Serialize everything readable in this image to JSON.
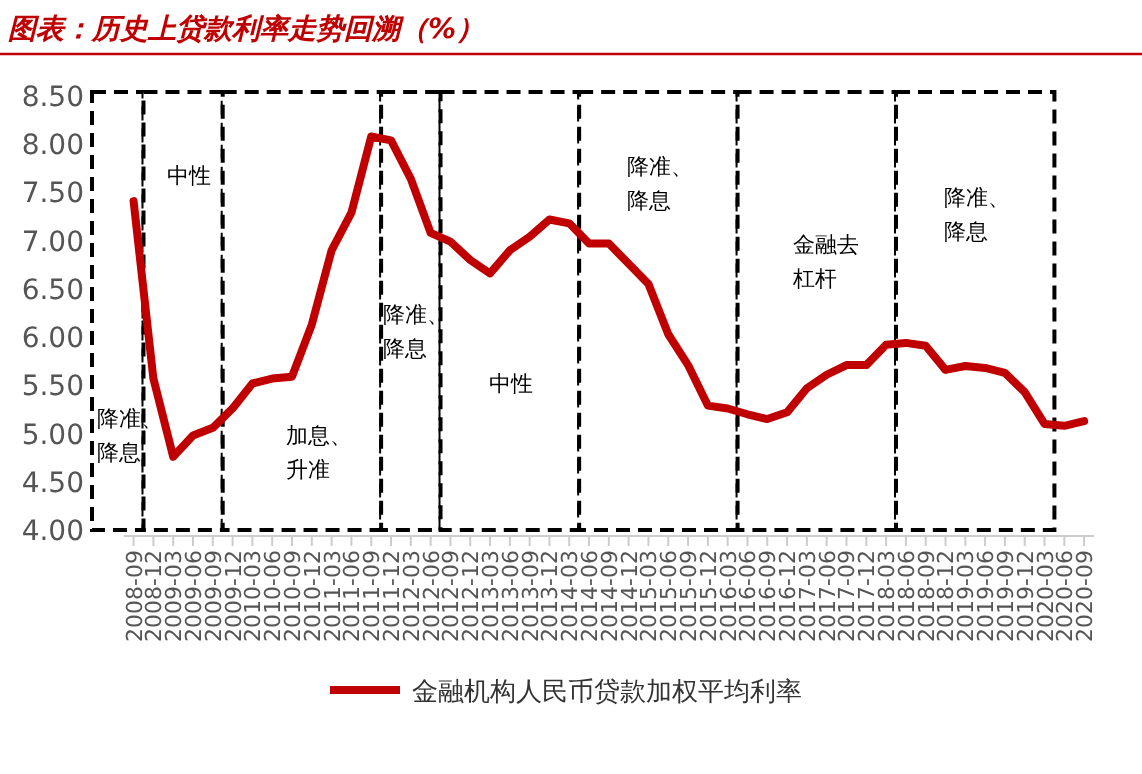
{
  "chart_data": {
    "type": "line",
    "title": "图表：历史上贷款利率走势回溯（%）",
    "categories": [
      "2008-09",
      "2008-12",
      "2009-03",
      "2009-06",
      "2009-09",
      "2009-12",
      "2010-03",
      "2010-06",
      "2010-09",
      "2010-12",
      "2011-03",
      "2011-06",
      "2011-09",
      "2011-12",
      "2012-03",
      "2012-06",
      "2012-09",
      "2012-12",
      "2013-03",
      "2013-06",
      "2013-09",
      "2013-12",
      "2014-03",
      "2014-06",
      "2014-09",
      "2014-12",
      "2015-03",
      "2015-06",
      "2015-09",
      "2015-12",
      "2016-03",
      "2016-06",
      "2016-09",
      "2016-12",
      "2017-03",
      "2017-06",
      "2017-09",
      "2017-12",
      "2018-03",
      "2018-06",
      "2018-09",
      "2018-12",
      "2019-03",
      "2019-06",
      "2019-09",
      "2019-12",
      "2020-03",
      "2020-06",
      "2020-09"
    ],
    "series": [
      {
        "name": "金融机构人民币贷款加权平均利率",
        "color": "#c00000",
        "values": [
          7.41,
          5.57,
          4.76,
          4.98,
          5.06,
          5.26,
          5.52,
          5.57,
          5.59,
          6.13,
          6.9,
          7.29,
          8.08,
          8.04,
          7.64,
          7.08,
          6.99,
          6.8,
          6.66,
          6.9,
          7.04,
          7.22,
          7.18,
          6.97,
          6.97,
          6.76,
          6.55,
          6.03,
          5.71,
          5.29,
          5.26,
          5.2,
          5.15,
          5.22,
          5.47,
          5.61,
          5.71,
          5.71,
          5.92,
          5.94,
          5.91,
          5.66,
          5.7,
          5.68,
          5.63,
          5.43,
          5.1,
          5.08,
          5.13
        ]
      }
    ],
    "ylim": [
      4,
      8.5
    ],
    "yticks": [
      {
        "value": 4,
        "label": "4.00"
      },
      {
        "value": 4.5,
        "label": "4.50"
      },
      {
        "value": 5,
        "label": "5.00"
      },
      {
        "value": 5.5,
        "label": "5.50"
      },
      {
        "value": 6,
        "label": "6.00"
      },
      {
        "value": 6.5,
        "label": "6.50"
      },
      {
        "value": 7,
        "label": "7.00"
      },
      {
        "value": 7.5,
        "label": "7.50"
      },
      {
        "value": 8,
        "label": "8.00"
      },
      {
        "value": 8.5,
        "label": "8.50"
      }
    ],
    "bands": [
      {
        "axis": "x",
        "from": "2008-09",
        "to": "2008-09",
        "label": "降准、降息"
      },
      {
        "axis": "x",
        "from": "2008-12",
        "to": "2009-09",
        "label": "中性"
      },
      {
        "axis": "x",
        "from": "2009-12",
        "to": "2011-09",
        "label": "加息、升准"
      },
      {
        "axis": "x",
        "from": "2011-12",
        "to": "2012-06",
        "label": "降准、降息"
      },
      {
        "axis": "x",
        "from": "2012-09",
        "to": "2014-03",
        "label": "中性"
      },
      {
        "axis": "x",
        "from": "2014-06",
        "to": "2016-03",
        "label": "降准、降息"
      },
      {
        "axis": "x",
        "from": "2016-06",
        "to": "2018-03",
        "label": "金融去杠杆"
      },
      {
        "axis": "x",
        "from": "2018-06",
        "to": "2020-03",
        "label": "降准、降息"
      }
    ],
    "grid": false,
    "legend": "bottom",
    "marker": "none",
    "line_style": "solid"
  }
}
